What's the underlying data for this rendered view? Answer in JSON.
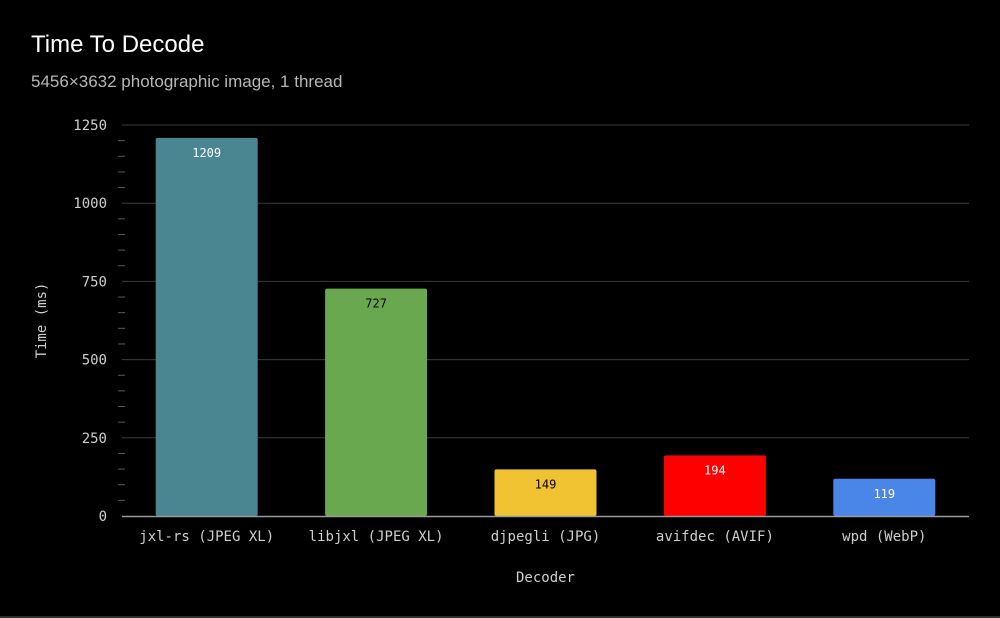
{
  "chart_data": {
    "type": "bar",
    "title": "Time To Decode",
    "subtitle": "5456×3632 photographic image, 1 thread",
    "xlabel": "Decoder",
    "ylabel": "Time (ms)",
    "ylim": [
      0,
      1250
    ],
    "yticks": [
      "0",
      "250",
      "500",
      "750",
      "1000",
      "1250"
    ],
    "grid": true,
    "categories": [
      "jxl-rs (JPEG XL)",
      "libjxl (JPEG XL)",
      "djpegli (JPG)",
      "avifdec (AVIF)",
      "wpd (WebP)"
    ],
    "values": [
      1209,
      727,
      149,
      194,
      119
    ],
    "data_labels": [
      "1209",
      "727",
      "149",
      "194",
      "119"
    ],
    "colors": [
      "#4a8592",
      "#6aa84f",
      "#f1c232",
      "#ff0000",
      "#4a86e8"
    ],
    "label_colors": [
      "#ffffff",
      "#000000",
      "#000000",
      "#ffffff",
      "#ffffff"
    ]
  }
}
